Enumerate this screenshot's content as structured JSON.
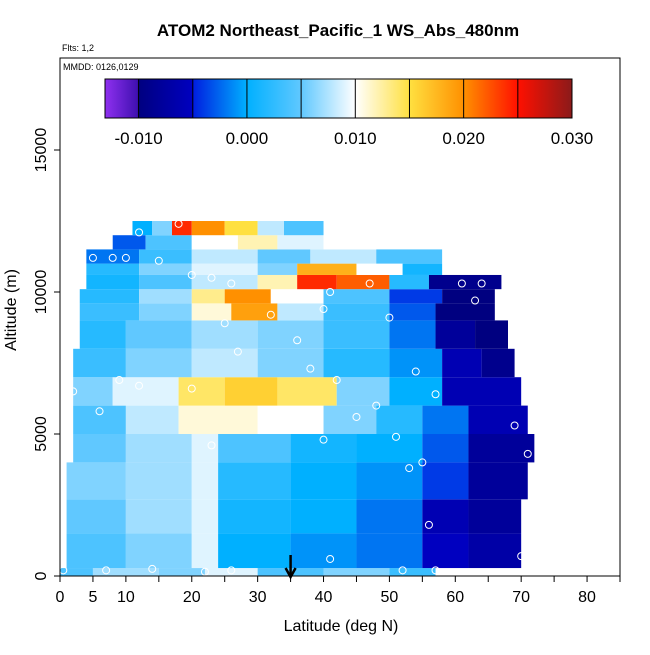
{
  "chart_data": {
    "type": "heatmap",
    "title": "ATOM2 Northeast_Pacific_1 WS_Abs_480nm",
    "subtitle": "Flts: 1,2",
    "annotation": "MMDD: 0126,0129",
    "xlabel": "Latitude (deg N)",
    "ylabel": "Altitude (m)",
    "xlim": [
      0,
      85
    ],
    "xticks": [
      0,
      5,
      10,
      20,
      30,
      40,
      50,
      60,
      70,
      80
    ],
    "xminorticks": [
      15,
      25,
      35,
      45,
      55,
      65,
      75,
      85
    ],
    "ylim": [
      0,
      18240
    ],
    "yticks": [
      0,
      5000,
      10000,
      15000
    ],
    "colorbar": {
      "lim": [
        -0.0131,
        0.03
      ],
      "ticks": [
        {
          "value": -0.01,
          "label": "-0.010"
        },
        {
          "value": 0,
          "label": "0.000"
        },
        {
          "value": 0.01,
          "label": "0.010"
        },
        {
          "value": 0.02,
          "label": "0.020"
        },
        {
          "value": 0.03,
          "label": "0.030"
        }
      ],
      "minorticks": [
        -0.005,
        0.005,
        0.015,
        0.025
      ],
      "stops": [
        {
          "value": -0.0131,
          "color": "#8f30f0"
        },
        {
          "value": -0.0101,
          "color": "#4010b0"
        },
        {
          "value": -0.01,
          "color": "#000080"
        },
        {
          "value": -0.005,
          "color": "#0000c0"
        },
        {
          "value": -0.0049,
          "color": "#0020e0"
        },
        {
          "value": 0,
          "color": "#00b0ff"
        },
        {
          "value": 0.005,
          "color": "#60c8ff"
        },
        {
          "value": 0.01,
          "color": "#ffffff"
        },
        {
          "value": 0.015,
          "color": "#ffe040"
        },
        {
          "value": 0.02,
          "color": "#ff9000"
        },
        {
          "value": 0.025,
          "color": "#ff1000"
        },
        {
          "value": 0.03,
          "color": "#8b1a1a"
        }
      ]
    },
    "rows": [
      {
        "alt": [
          0,
          280
        ],
        "lat": [
          0,
          5,
          15,
          22,
          30,
          40,
          50,
          57
        ],
        "values": [
          0.004,
          0.007,
          0.006,
          0.009,
          0.004,
          0.006,
          0.003
        ]
      },
      {
        "alt": [
          280,
          1500
        ],
        "lat": [
          1,
          10,
          20,
          24,
          35,
          45,
          55,
          62,
          70
        ],
        "values": [
          0.004,
          0.006,
          0.009,
          0.0,
          -0.001,
          -0.002,
          -0.005,
          -0.007
        ]
      },
      {
        "alt": [
          1500,
          2700
        ],
        "lat": [
          1,
          10,
          20,
          24,
          35,
          45,
          55,
          62,
          70
        ],
        "values": [
          0.005,
          0.007,
          0.009,
          0.001,
          0.0,
          -0.002,
          -0.006,
          -0.008
        ]
      },
      {
        "alt": [
          2700,
          4000
        ],
        "lat": [
          1,
          10,
          20,
          24,
          35,
          45,
          55,
          62,
          71
        ],
        "values": [
          0.006,
          0.007,
          0.009,
          0.002,
          0.0,
          -0.001,
          -0.004,
          -0.008
        ]
      },
      {
        "alt": [
          4000,
          5000
        ],
        "lat": [
          2,
          10,
          20,
          24,
          35,
          45,
          55,
          62,
          72
        ],
        "values": [
          0.005,
          0.007,
          0.009,
          0.004,
          0.001,
          0.0,
          -0.003,
          -0.008
        ]
      },
      {
        "alt": [
          5000,
          6000
        ],
        "lat": [
          2,
          10,
          18,
          30,
          40,
          48,
          55,
          62,
          71
        ],
        "values": [
          0.004,
          0.008,
          0.011,
          0.01,
          0.006,
          0.002,
          -0.002,
          -0.006
        ]
      },
      {
        "alt": [
          6000,
          7000
        ],
        "lat": [
          2,
          8,
          18,
          25,
          33,
          42,
          50,
          58,
          70
        ],
        "values": [
          0.006,
          0.009,
          0.014,
          0.016,
          0.014,
          0.006,
          0.0,
          -0.006
        ]
      },
      {
        "alt": [
          7000,
          8000
        ],
        "lat": [
          2,
          10,
          20,
          30,
          40,
          50,
          58,
          64,
          69
        ],
        "values": [
          0.003,
          0.006,
          0.008,
          0.006,
          0.002,
          -0.001,
          -0.006,
          -0.009
        ]
      },
      {
        "alt": [
          8000,
          9000
        ],
        "lat": [
          3,
          10,
          20,
          30,
          40,
          50,
          57,
          63,
          68
        ],
        "values": [
          0.002,
          0.005,
          0.007,
          0.006,
          0.003,
          -0.002,
          -0.008,
          -0.01
        ]
      },
      {
        "alt": [
          9000,
          9600
        ],
        "lat": [
          3,
          12,
          20,
          26,
          33,
          40,
          50,
          57,
          66
        ],
        "values": [
          0.003,
          0.006,
          0.011,
          0.019,
          0.008,
          0.003,
          -0.003,
          -0.01
        ]
      },
      {
        "alt": [
          9600,
          10100
        ],
        "lat": [
          3,
          12,
          20,
          25,
          32,
          40,
          50,
          58,
          66
        ],
        "values": [
          0.002,
          0.007,
          0.013,
          0.02,
          0.01,
          0.004,
          -0.004,
          -0.01
        ]
      },
      {
        "alt": [
          10100,
          10600
        ],
        "lat": [
          4,
          12,
          20,
          30,
          36,
          42,
          50,
          56,
          67
        ],
        "values": [
          0.001,
          0.004,
          0.008,
          0.012,
          0.024,
          0.022,
          0.002,
          -0.009
        ]
      },
      {
        "alt": [
          10600,
          11000
        ],
        "lat": [
          4,
          12,
          20,
          30,
          36,
          45,
          52,
          58
        ],
        "values": [
          0.002,
          0.006,
          0.009,
          0.006,
          0.018,
          0.01,
          0.001
        ]
      },
      {
        "alt": [
          11000,
          11500
        ],
        "lat": [
          4,
          12,
          20,
          30,
          38,
          48,
          58
        ],
        "values": [
          -0.002,
          0.003,
          0.008,
          0.005,
          0.008,
          0.004
        ]
      },
      {
        "alt": [
          11500,
          12000
        ],
        "lat": [
          8,
          13,
          20,
          27,
          33,
          40,
          48
        ],
        "values": [
          -0.003,
          0.004,
          0.01,
          0.012,
          0.009,
          0.01
        ]
      },
      {
        "alt": [
          12000,
          12500
        ],
        "lat": [
          11,
          14,
          17,
          20,
          25,
          30,
          34,
          40
        ],
        "values": [
          0.0,
          0.006,
          0.024,
          0.02,
          0.015,
          0.008,
          0.004
        ]
      }
    ],
    "points": {
      "lat": [
        0.5,
        7,
        14,
        22,
        26,
        52,
        57,
        41,
        70,
        56,
        53,
        55,
        71,
        51,
        40,
        23,
        6,
        45,
        48,
        69,
        2,
        12,
        20,
        42,
        57,
        9,
        27,
        38,
        54,
        36,
        25,
        50,
        32,
        63,
        64,
        61,
        26,
        40,
        47,
        41,
        5,
        10,
        15,
        20,
        23,
        8,
        12,
        18,
        70
      ],
      "alt": [
        200,
        200,
        250,
        150,
        200,
        200,
        200,
        600,
        700,
        1800,
        3800,
        4000,
        4300,
        4900,
        4800,
        4600,
        5800,
        5600,
        6000,
        5300,
        6500,
        6700,
        6600,
        6900,
        6400,
        6900,
        7900,
        7300,
        7200,
        8300,
        8900,
        9100,
        9200,
        9700,
        10300,
        10300,
        10300,
        9400,
        10300,
        10000,
        11200,
        11200,
        11100,
        10600,
        10500,
        11200,
        12100,
        12400,
        10900
      ]
    },
    "marker_lat": 35
  }
}
